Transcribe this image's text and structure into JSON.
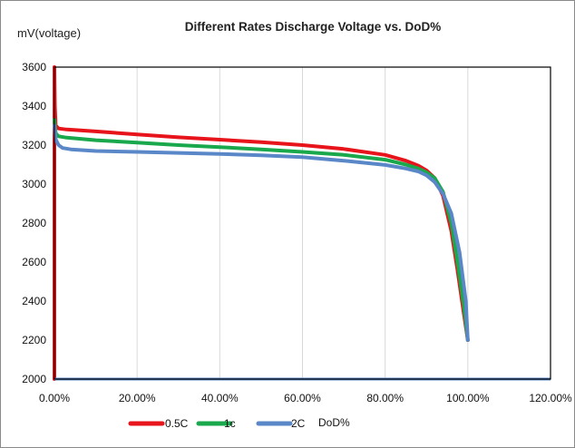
{
  "chart_data": {
    "type": "line",
    "title": "Different Rates Discharge  Voltage vs. DoD%",
    "ylabel": "mV(voltage)",
    "xlabel": "DoD%",
    "xlim": [
      0,
      120
    ],
    "ylim": [
      2000,
      3600
    ],
    "x_ticks": [
      "0.00%",
      "20.00%",
      "40.00%",
      "60.00%",
      "80.00%",
      "100.00%",
      "120.00%"
    ],
    "y_ticks": [
      "2000",
      "2200",
      "2400",
      "2600",
      "2800",
      "3000",
      "3200",
      "3400",
      "3600"
    ],
    "grid": "vertical",
    "legend_position": "bottom",
    "series": [
      {
        "name": "0.5C",
        "color": "#e8141b",
        "x": [
          0,
          0,
          0.1,
          0.3,
          1,
          3,
          10,
          20,
          30,
          40,
          50,
          60,
          70,
          80,
          85,
          88,
          90,
          92,
          94,
          96,
          97.5,
          99,
          100
        ],
        "y": [
          2000,
          3600,
          3400,
          3300,
          3285,
          3280,
          3270,
          3255,
          3240,
          3228,
          3215,
          3200,
          3180,
          3150,
          3120,
          3095,
          3070,
          3030,
          2940,
          2760,
          2560,
          2340,
          2200
        ]
      },
      {
        "name": "1c",
        "color": "#19a84c",
        "x": [
          0,
          0.3,
          1,
          3,
          10,
          20,
          30,
          40,
          50,
          60,
          70,
          80,
          85,
          88,
          90,
          92,
          94,
          96,
          97.5,
          99,
          100
        ],
        "y": [
          3330,
          3260,
          3245,
          3238,
          3225,
          3213,
          3200,
          3190,
          3178,
          3165,
          3150,
          3125,
          3100,
          3080,
          3060,
          3030,
          2960,
          2800,
          2600,
          2380,
          2200
        ]
      },
      {
        "name": "2C",
        "color": "#5a87c8",
        "x": [
          0,
          0.3,
          1,
          2,
          4,
          10,
          20,
          30,
          40,
          50,
          60,
          70,
          80,
          85,
          88,
          90,
          92,
          94,
          96,
          98,
          99.5,
          100
        ],
        "y": [
          3300,
          3230,
          3200,
          3185,
          3178,
          3170,
          3165,
          3160,
          3155,
          3148,
          3138,
          3120,
          3098,
          3080,
          3065,
          3045,
          3010,
          2950,
          2850,
          2650,
          2400,
          2200
        ]
      }
    ]
  }
}
